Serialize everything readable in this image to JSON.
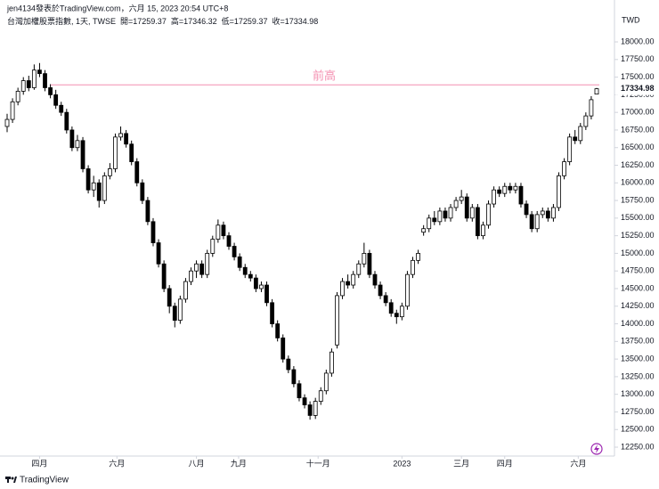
{
  "header": {
    "author_line": "jen4134發表於TradingView.com，六月 15, 2023 20:54 UTC+8"
  },
  "chart_data": {
    "type": "candlestick",
    "title": "台灣加權股票指數, 1天, TWSE",
    "ohlc_labels": [
      "開=",
      "高=",
      "低=",
      "收="
    ],
    "currency": "TWD",
    "up_color": "#ffffff",
    "down_color": "#000000",
    "grid": false,
    "ohlc": [
      [
        16800,
        16980,
        16720,
        16900
      ],
      [
        16900,
        17200,
        16850,
        17150
      ],
      [
        17150,
        17350,
        17100,
        17300
      ],
      [
        17300,
        17500,
        17250,
        17450
      ],
      [
        17450,
        17520,
        17300,
        17350
      ],
      [
        17350,
        17680,
        17320,
        17600
      ],
      [
        17600,
        17700,
        17500,
        17550
      ],
      [
        17550,
        17600,
        17300,
        17350
      ],
      [
        17350,
        17400,
        17200,
        17250
      ],
      [
        17250,
        17320,
        17050,
        17100
      ],
      [
        17100,
        17150,
        16950,
        17000
      ],
      [
        17000,
        17050,
        16700,
        16750
      ],
      [
        16750,
        16800,
        16450,
        16500
      ],
      [
        16500,
        16680,
        16450,
        16600
      ],
      [
        16600,
        16650,
        16150,
        16200
      ],
      [
        16200,
        16250,
        15850,
        15900
      ],
      [
        15900,
        16100,
        15800,
        16000
      ],
      [
        16000,
        16050,
        15650,
        15750
      ],
      [
        15750,
        16150,
        15700,
        16100
      ],
      [
        16100,
        16280,
        16050,
        16200
      ],
      [
        16200,
        16700,
        16150,
        16650
      ],
      [
        16650,
        16800,
        16600,
        16700
      ],
      [
        16700,
        16750,
        16500,
        16550
      ],
      [
        16550,
        16600,
        16250,
        16300
      ],
      [
        16300,
        16350,
        15950,
        16000
      ],
      [
        16000,
        16050,
        15700,
        15750
      ],
      [
        15750,
        15800,
        15400,
        15450
      ],
      [
        15450,
        15500,
        15100,
        15150
      ],
      [
        15150,
        15200,
        14800,
        14850
      ],
      [
        14850,
        14900,
        14450,
        14500
      ],
      [
        14500,
        14550,
        14150,
        14250
      ],
      [
        14250,
        14300,
        13950,
        14050
      ],
      [
        14050,
        14400,
        14000,
        14350
      ],
      [
        14350,
        14650,
        14300,
        14600
      ],
      [
        14600,
        14800,
        14550,
        14750
      ],
      [
        14750,
        14900,
        14650,
        14850
      ],
      [
        14850,
        14900,
        14650,
        14700
      ],
      [
        14700,
        15050,
        14650,
        15000
      ],
      [
        15000,
        15250,
        14950,
        15200
      ],
      [
        15200,
        15480,
        15150,
        15400
      ],
      [
        15400,
        15450,
        15200,
        15250
      ],
      [
        15250,
        15300,
        15050,
        15100
      ],
      [
        15100,
        15150,
        14900,
        14950
      ],
      [
        14950,
        15000,
        14750,
        14800
      ],
      [
        14800,
        14850,
        14650,
        14700
      ],
      [
        14700,
        14750,
        14600,
        14650
      ],
      [
        14650,
        14700,
        14450,
        14500
      ],
      [
        14500,
        14600,
        14450,
        14550
      ],
      [
        14550,
        14600,
        14250,
        14300
      ],
      [
        14300,
        14350,
        13950,
        14000
      ],
      [
        14000,
        14050,
        13750,
        13800
      ],
      [
        13800,
        13850,
        13450,
        13500
      ],
      [
        13500,
        13550,
        13300,
        13350
      ],
      [
        13350,
        13400,
        13100,
        13150
      ],
      [
        13150,
        13200,
        12900,
        12950
      ],
      [
        12950,
        13000,
        12800,
        12850
      ],
      [
        12850,
        12900,
        12640,
        12700
      ],
      [
        12700,
        12950,
        12650,
        12900
      ],
      [
        12900,
        13100,
        12850,
        13050
      ],
      [
        13050,
        13350,
        13000,
        13300
      ],
      [
        13300,
        13650,
        13250,
        13600
      ],
      [
        13700,
        14450,
        13650,
        14400
      ],
      [
        14400,
        14650,
        14350,
        14600
      ],
      [
        14600,
        14700,
        14500,
        14550
      ],
      [
        14550,
        14750,
        14500,
        14700
      ],
      [
        14700,
        14900,
        14650,
        14850
      ],
      [
        14850,
        15150,
        14800,
        15000
      ],
      [
        15000,
        15050,
        14650,
        14700
      ],
      [
        14700,
        14750,
        14500,
        14550
      ],
      [
        14550,
        14600,
        14350,
        14400
      ],
      [
        14400,
        14450,
        14250,
        14300
      ],
      [
        14300,
        14350,
        14100,
        14150
      ],
      [
        14150,
        14200,
        14000,
        14100
      ],
      [
        14100,
        14300,
        14050,
        14250
      ],
      [
        14250,
        14750,
        14200,
        14700
      ],
      [
        14700,
        14950,
        14650,
        14900
      ],
      [
        14900,
        15050,
        14850,
        15000
      ],
      [
        15300,
        15400,
        15250,
        15350
      ],
      [
        15350,
        15550,
        15300,
        15500
      ],
      [
        15500,
        15600,
        15400,
        15450
      ],
      [
        15450,
        15650,
        15400,
        15600
      ],
      [
        15600,
        15650,
        15450,
        15500
      ],
      [
        15500,
        15700,
        15450,
        15650
      ],
      [
        15650,
        15800,
        15600,
        15750
      ],
      [
        15750,
        15900,
        15700,
        15800
      ],
      [
        15800,
        15850,
        15450,
        15500
      ],
      [
        15500,
        15700,
        15450,
        15650
      ],
      [
        15650,
        15700,
        15200,
        15250
      ],
      [
        15250,
        15450,
        15200,
        15400
      ],
      [
        15400,
        15750,
        15350,
        15700
      ],
      [
        15700,
        15950,
        15650,
        15900
      ],
      [
        15900,
        15950,
        15800,
        15850
      ],
      [
        15850,
        16000,
        15800,
        15950
      ],
      [
        15950,
        16000,
        15850,
        15900
      ],
      [
        15900,
        16000,
        15850,
        15950
      ],
      [
        15950,
        16000,
        15650,
        15700
      ],
      [
        15700,
        15750,
        15500,
        15550
      ],
      [
        15550,
        15600,
        15300,
        15350
      ],
      [
        15350,
        15600,
        15300,
        15550
      ],
      [
        15550,
        15650,
        15500,
        15600
      ],
      [
        15600,
        15650,
        15450,
        15500
      ],
      [
        15500,
        15700,
        15450,
        15650
      ],
      [
        15650,
        16150,
        15600,
        16100
      ],
      [
        16100,
        16350,
        16050,
        16300
      ],
      [
        16300,
        16700,
        16250,
        16650
      ],
      [
        16650,
        16750,
        16550,
        16600
      ],
      [
        16600,
        16850,
        16550,
        16800
      ],
      [
        16800,
        17000,
        16750,
        16950
      ],
      [
        16950,
        17230,
        16900,
        17180
      ],
      [
        17259.37,
        17346.32,
        17259.37,
        17334.98
      ]
    ],
    "xlim": [
      0,
      109
    ],
    "xticks": [
      {
        "value": 6,
        "label": "四月"
      },
      {
        "value": 20.3,
        "label": "六月"
      },
      {
        "value": 35,
        "label": "八月"
      },
      {
        "value": 42.8,
        "label": "九月"
      },
      {
        "value": 57.5,
        "label": "十一月"
      },
      {
        "value": 73,
        "label": "2023"
      },
      {
        "value": 84,
        "label": "三月"
      },
      {
        "value": 92,
        "label": "四月"
      },
      {
        "value": 105.6,
        "label": "六月"
      }
    ],
    "ylim": [
      12124,
      18468
    ],
    "yticks": [
      {
        "value": 12250,
        "label": "12250.00"
      },
      {
        "value": 12500,
        "label": "12500.00"
      },
      {
        "value": 12750,
        "label": "12750.00"
      },
      {
        "value": 13000,
        "label": "13000.00"
      },
      {
        "value": 13250,
        "label": "13250.00"
      },
      {
        "value": 13500,
        "label": "13500.00"
      },
      {
        "value": 13750,
        "label": "13750.00"
      },
      {
        "value": 14000,
        "label": "14000.00"
      },
      {
        "value": 14250,
        "label": "14250.00"
      },
      {
        "value": 14500,
        "label": "14500.00"
      },
      {
        "value": 14750,
        "label": "14750.00"
      },
      {
        "value": 15000,
        "label": "15000.00"
      },
      {
        "value": 15250,
        "label": "15250.00"
      },
      {
        "value": 15500,
        "label": "15500.00"
      },
      {
        "value": 15750,
        "label": "15750.00"
      },
      {
        "value": 16000,
        "label": "16000.00"
      },
      {
        "value": 16250,
        "label": "16250.00"
      },
      {
        "value": 16500,
        "label": "16500.00"
      },
      {
        "value": 16750,
        "label": "16750.00"
      },
      {
        "value": 17000,
        "label": "17000.00"
      },
      {
        "value": 17250,
        "label": "17250.00"
      },
      {
        "value": 17500,
        "label": "17500.00"
      },
      {
        "value": 17750,
        "label": "17750.00"
      },
      {
        "value": 18000,
        "label": "18000.00"
      }
    ],
    "annotations": [
      {
        "text": "前高",
        "value": 17390,
        "color": "#f48fb1"
      }
    ]
  },
  "footer": {
    "brand": "TradingView"
  }
}
